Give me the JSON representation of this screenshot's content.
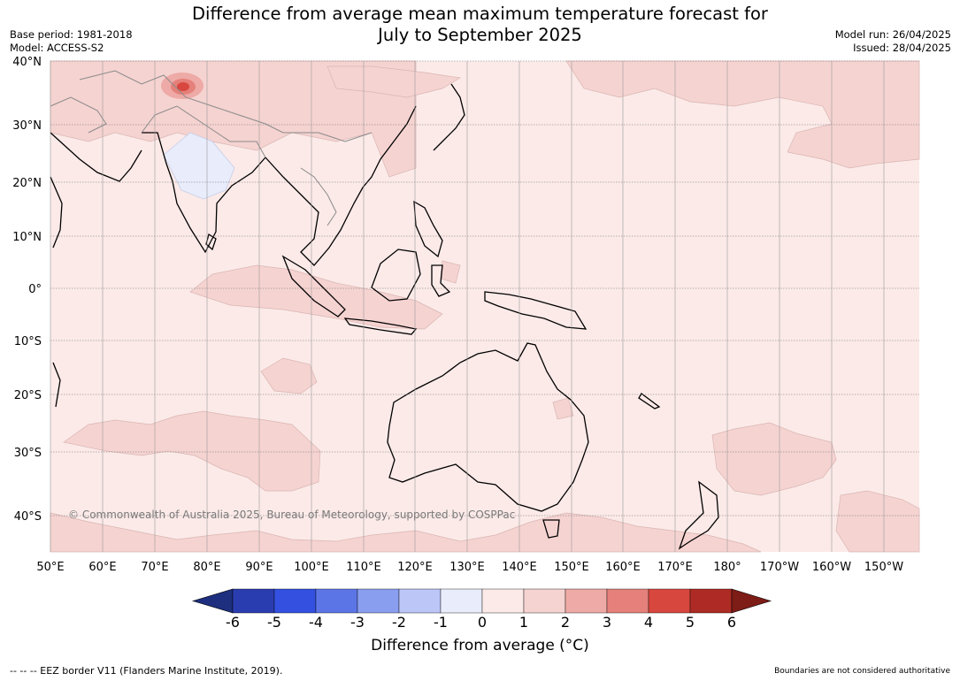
{
  "header": {
    "title_line1": "Difference from average mean maximum temperature forecast for",
    "title_line2": "July to September 2025",
    "base_period": "Base period: 1981-2018",
    "model": "Model: ACCESS-S2",
    "model_run": "Model run: 26/04/2025",
    "issued": "Issued: 28/04/2025"
  },
  "map": {
    "lat_labels": [
      "40°N",
      "30°N",
      "20°N",
      "10°N",
      "0°",
      "10°S",
      "20°S",
      "30°S",
      "40°S"
    ],
    "lon_labels": [
      "50°E",
      "60°E",
      "70°E",
      "80°E",
      "90°E",
      "100°E",
      "110°E",
      "120°E",
      "130°E",
      "140°E",
      "150°E",
      "160°E",
      "170°E",
      "180°",
      "170°W",
      "160°W",
      "150°W"
    ],
    "copyright": "© Commonwealth of Australia 2025, Bureau of Meteorology, supported by COSPPac",
    "background_color": "#fbeae8",
    "anomaly_color": "#f5d3d1"
  },
  "colorbar": {
    "ticks": [
      "-6",
      "-5",
      "-4",
      "-3",
      "-2",
      "-1",
      "0",
      "1",
      "2",
      "3",
      "4",
      "5",
      "6"
    ],
    "colors": [
      "#1d2f7e",
      "#2a3db0",
      "#3350e0",
      "#5c75e6",
      "#8a9ef0",
      "#bcc6f7",
      "#e8ecfb",
      "#fbeae8",
      "#f5d3d1",
      "#eeaaa6",
      "#e5807a",
      "#d8473e",
      "#ad2b24",
      "#7e1c17"
    ],
    "label": "Difference from average (°C)"
  },
  "footer": {
    "eez_legend": "-- -- -- EEZ border V11 (Flanders Marine Institute, 2019).",
    "disclaimer": "Boundaries are not considered authoritative"
  }
}
